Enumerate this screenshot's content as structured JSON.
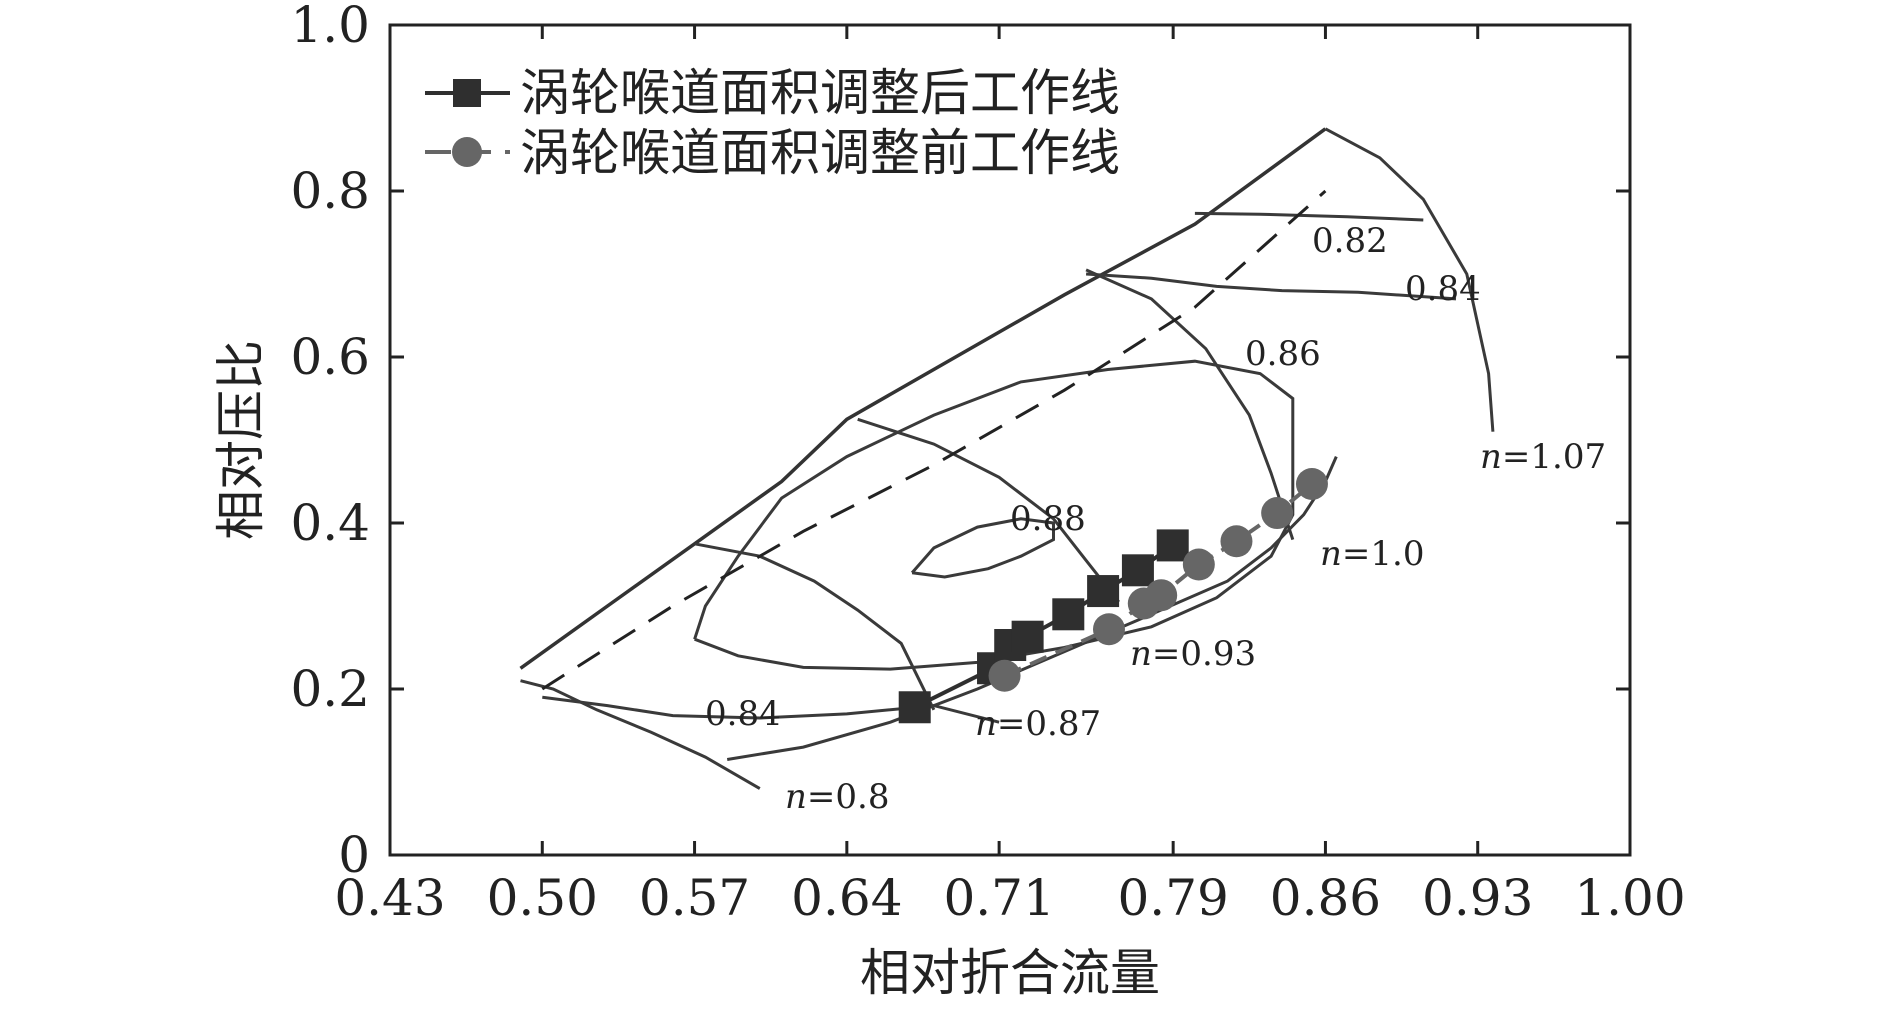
{
  "chart_data": {
    "type": "line",
    "xlabel": "相对折合流量",
    "ylabel": "相对压比",
    "xlim": [
      0.43,
      1.0
    ],
    "ylim": [
      0.0,
      1.0
    ],
    "xticks": [
      "0.43",
      "0.50",
      "0.57",
      "0.64",
      "0.71",
      "0.79",
      "0.86",
      "0.93",
      "1.00"
    ],
    "yticks": [
      "0",
      "0.2",
      "0.4",
      "0.6",
      "0.8",
      "1.0"
    ],
    "grid": false,
    "legend_position": "top-left",
    "series": [
      {
        "name": "涡轮喉道面积调整后工作线",
        "marker": "square",
        "line": "solid",
        "color": "#2f2f2f",
        "x": [
          0.6712,
          0.7072,
          0.7151,
          0.7231,
          0.7418,
          0.7578,
          0.7738,
          0.7898
        ],
        "y": [
          0.178,
          0.225,
          0.253,
          0.263,
          0.29,
          0.318,
          0.343,
          0.373
        ]
      },
      {
        "name": "涡轮喉道面积调整前工作线",
        "marker": "circle",
        "line": "dashed",
        "color": "#666666",
        "x": [
          0.7125,
          0.7605,
          0.7765,
          0.7845,
          0.8018,
          0.8191,
          0.8378,
          0.8538
        ],
        "y": [
          0.216,
          0.272,
          0.303,
          0.313,
          0.35,
          0.378,
          0.412,
          0.447
        ]
      }
    ],
    "speed_lines": [
      {
        "label": "n=0.8",
        "x": [
          0.49,
          0.505,
          0.525,
          0.55,
          0.575,
          0.6
        ],
        "y": [
          0.21,
          0.2,
          0.175,
          0.148,
          0.118,
          0.08
        ]
      },
      {
        "label": "n=0.87",
        "x": [
          0.57,
          0.6,
          0.625,
          0.645,
          0.665,
          0.68
        ],
        "y": [
          0.375,
          0.36,
          0.33,
          0.295,
          0.255,
          0.175
        ]
      },
      {
        "label": "n=0.93",
        "x": [
          0.645,
          0.68,
          0.71,
          0.735,
          0.75,
          0.765
        ],
        "y": [
          0.525,
          0.495,
          0.455,
          0.405,
          0.355,
          0.305
        ]
      },
      {
        "label": "n=1.0",
        "x": [
          0.75,
          0.78,
          0.805,
          0.825,
          0.835,
          0.845
        ],
        "y": [
          0.705,
          0.67,
          0.61,
          0.53,
          0.46,
          0.38
        ]
      },
      {
        "label": "n=1.07",
        "x": [
          0.86,
          0.885,
          0.905,
          0.925,
          0.935,
          0.937
        ],
        "y": [
          0.875,
          0.84,
          0.79,
          0.7,
          0.58,
          0.51
        ]
      }
    ],
    "efficiency_contours": [
      {
        "label": "0.82",
        "x": [
          0.8,
          0.83,
          0.87,
          0.905
        ],
        "y": [
          0.773,
          0.772,
          0.769,
          0.765
        ]
      },
      {
        "label": "0.84",
        "x": [
          0.75,
          0.78,
          0.81,
          0.84,
          0.875,
          0.92
        ],
        "y": [
          0.7,
          0.695,
          0.685,
          0.68,
          0.678,
          0.67
        ]
      },
      {
        "label": "0.84",
        "x": [
          0.5,
          0.53,
          0.56,
          0.6,
          0.64,
          0.68,
          0.71
        ],
        "y": [
          0.19,
          0.18,
          0.168,
          0.165,
          0.17,
          0.18,
          0.16
        ]
      },
      {
        "label": "0.84",
        "x": [
          0.585,
          0.62,
          0.66,
          0.7,
          0.74,
          0.78,
          0.815,
          0.835,
          0.85,
          0.86,
          0.865
        ],
        "y": [
          0.115,
          0.13,
          0.16,
          0.2,
          0.245,
          0.29,
          0.33,
          0.37,
          0.41,
          0.45,
          0.48
        ]
      },
      {
        "label": "0.86",
        "x": [
          0.57,
          0.59,
          0.62,
          0.66,
          0.7,
          0.74,
          0.78,
          0.81,
          0.835,
          0.845,
          0.845,
          0.83,
          0.8,
          0.76,
          0.72,
          0.68,
          0.64,
          0.61,
          0.59,
          0.575,
          0.57
        ],
        "y": [
          0.26,
          0.24,
          0.226,
          0.224,
          0.232,
          0.25,
          0.275,
          0.31,
          0.36,
          0.41,
          0.55,
          0.58,
          0.595,
          0.585,
          0.57,
          0.53,
          0.48,
          0.43,
          0.36,
          0.3,
          0.26
        ]
      },
      {
        "label": "0.88",
        "x": [
          0.67,
          0.685,
          0.705,
          0.72,
          0.735,
          0.735,
          0.72,
          0.7,
          0.68,
          0.67
        ],
        "y": [
          0.34,
          0.335,
          0.345,
          0.36,
          0.38,
          0.4,
          0.405,
          0.395,
          0.37,
          0.34
        ]
      }
    ],
    "surge_line": {
      "x": [
        0.49,
        0.53,
        0.57,
        0.61,
        0.64,
        0.69,
        0.74,
        0.8,
        0.86
      ],
      "y": [
        0.225,
        0.3,
        0.375,
        0.45,
        0.525,
        0.6,
        0.675,
        0.76,
        0.875
      ]
    },
    "line_labels": [
      "n=0.8",
      "n=0.87",
      "n=0.93",
      "n=1.0",
      "n=1.07",
      "0.82",
      "0.84",
      "0.84",
      "0.86",
      "0.88"
    ]
  },
  "labels": {
    "eff_082": "0.82",
    "eff_084_top": "0.84",
    "eff_086": "0.86",
    "eff_088": "0.88",
    "eff_084_bottom": "0.84",
    "n_08_prefix": "n",
    "n_08_value": "=0.8",
    "n_087_prefix": "n",
    "n_087_value": "=0.87",
    "n_093_prefix": "n",
    "n_093_value": "=0.93",
    "n_10_prefix": "n",
    "n_10_value": "=1.0",
    "n_107_prefix": "n",
    "n_107_value": "=1.07"
  }
}
